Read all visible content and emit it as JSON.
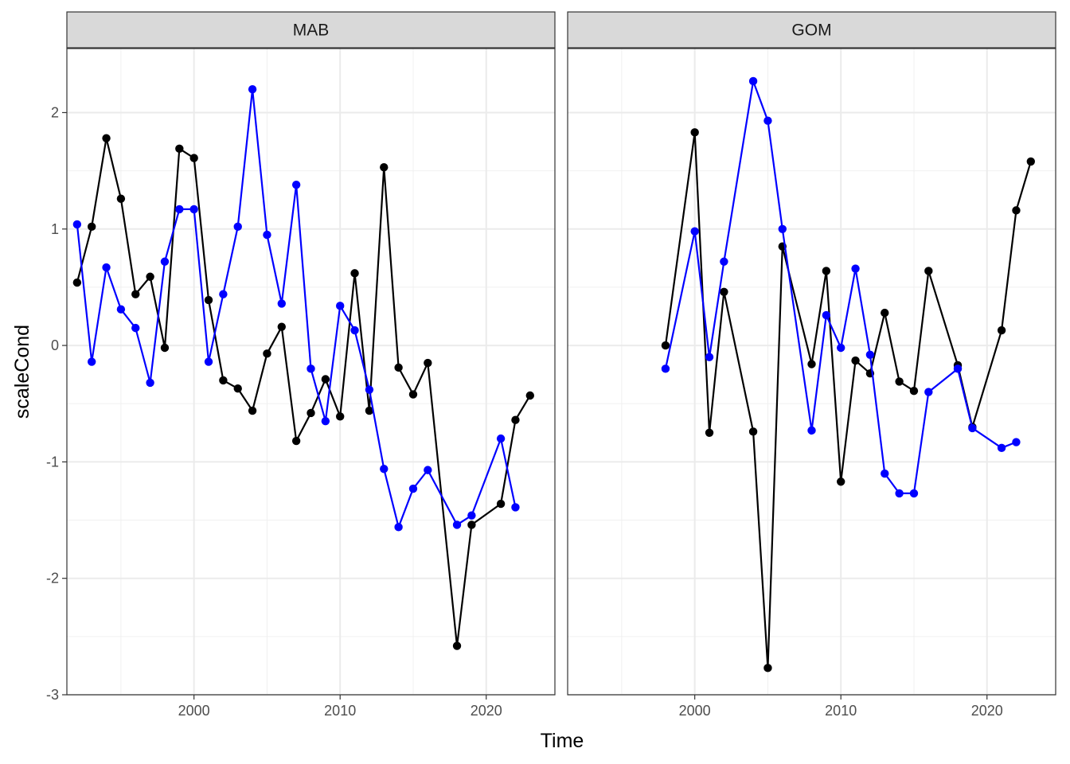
{
  "chart_data": {
    "type": "line",
    "xlabel": "Time",
    "ylabel": "scaleCond",
    "xlim": [
      1991.3,
      2024.7
    ],
    "ylim": [
      -3.0,
      2.55
    ],
    "x_major_ticks": [
      2000,
      2010,
      2020
    ],
    "x_minor_ticks": [
      1995,
      2005,
      2015
    ],
    "y_major_ticks": [
      -3,
      -2,
      -1,
      0,
      1,
      2
    ],
    "y_minor_ticks": [
      -2.5,
      -1.5,
      -0.5,
      0.5,
      1.5
    ],
    "grid": true,
    "colors": {
      "black": "#000000",
      "blue": "#0000ff"
    },
    "panels": [
      {
        "strip": "MAB",
        "series": [
          {
            "color": "#000000",
            "points": [
              [
                1992,
                0.54
              ],
              [
                1993,
                1.02
              ],
              [
                1994,
                1.78
              ],
              [
                1995,
                1.26
              ],
              [
                1996,
                0.44
              ],
              [
                1997,
                0.59
              ],
              [
                1998,
                -0.02
              ],
              [
                1999,
                1.69
              ],
              [
                2000,
                1.61
              ],
              [
                2001,
                0.39
              ],
              [
                2002,
                -0.3
              ],
              [
                2003,
                -0.37
              ],
              [
                2004,
                -0.56
              ],
              [
                2005,
                -0.07
              ],
              [
                2006,
                0.16
              ],
              [
                2007,
                -0.82
              ],
              [
                2008,
                -0.58
              ],
              [
                2009,
                -0.29
              ],
              [
                2010,
                -0.61
              ],
              [
                2011,
                0.62
              ],
              [
                2012,
                -0.56
              ],
              [
                2013,
                1.53
              ],
              [
                2014,
                -0.19
              ],
              [
                2015,
                -0.42
              ],
              [
                2016,
                -0.15
              ],
              [
                2018,
                -2.58
              ],
              [
                2019,
                -1.54
              ],
              [
                2021,
                -1.36
              ],
              [
                2022,
                -0.64
              ],
              [
                2023,
                -0.43
              ]
            ]
          },
          {
            "color": "#0000ff",
            "points": [
              [
                1992,
                1.04
              ],
              [
                1993,
                -0.14
              ],
              [
                1994,
                0.67
              ],
              [
                1995,
                0.31
              ],
              [
                1996,
                0.15
              ],
              [
                1997,
                -0.32
              ],
              [
                1998,
                0.72
              ],
              [
                1999,
                1.17
              ],
              [
                2000,
                1.17
              ],
              [
                2001,
                -0.14
              ],
              [
                2002,
                0.44
              ],
              [
                2003,
                1.02
              ],
              [
                2004,
                2.2
              ],
              [
                2005,
                0.95
              ],
              [
                2006,
                0.36
              ],
              [
                2007,
                1.38
              ],
              [
                2008,
                -0.2
              ],
              [
                2009,
                -0.65
              ],
              [
                2010,
                0.34
              ],
              [
                2011,
                0.13
              ],
              [
                2012,
                -0.38
              ],
              [
                2013,
                -1.06
              ],
              [
                2014,
                -1.56
              ],
              [
                2015,
                -1.23
              ],
              [
                2016,
                -1.07
              ],
              [
                2018,
                -1.54
              ],
              [
                2019,
                -1.46
              ],
              [
                2021,
                -0.8
              ],
              [
                2022,
                -1.39
              ]
            ]
          }
        ]
      },
      {
        "strip": "GOM",
        "series": [
          {
            "color": "#000000",
            "points": [
              [
                1998,
                0.0
              ],
              [
                2000,
                1.83
              ],
              [
                2001,
                -0.75
              ],
              [
                2002,
                0.46
              ],
              [
                2004,
                -0.74
              ],
              [
                2005,
                -2.77
              ],
              [
                2006,
                0.85
              ],
              [
                2008,
                -0.16
              ],
              [
                2009,
                0.64
              ],
              [
                2010,
                -1.17
              ],
              [
                2011,
                -0.13
              ],
              [
                2012,
                -0.24
              ],
              [
                2013,
                0.28
              ],
              [
                2014,
                -0.31
              ],
              [
                2015,
                -0.39
              ],
              [
                2016,
                0.64
              ],
              [
                2018,
                -0.17
              ],
              [
                2019,
                -0.7
              ],
              [
                2021,
                0.13
              ],
              [
                2022,
                1.16
              ],
              [
                2023,
                1.58
              ]
            ]
          },
          {
            "color": "#0000ff",
            "points": [
              [
                1998,
                -0.2
              ],
              [
                2000,
                0.98
              ],
              [
                2001,
                -0.1
              ],
              [
                2002,
                0.72
              ],
              [
                2004,
                2.27
              ],
              [
                2005,
                1.93
              ],
              [
                2006,
                1.0
              ],
              [
                2008,
                -0.73
              ],
              [
                2009,
                0.26
              ],
              [
                2010,
                -0.02
              ],
              [
                2011,
                0.66
              ],
              [
                2012,
                -0.08
              ],
              [
                2013,
                -1.1
              ],
              [
                2014,
                -1.27
              ],
              [
                2015,
                -1.27
              ],
              [
                2016,
                -0.4
              ],
              [
                2018,
                -0.2
              ],
              [
                2019,
                -0.71
              ],
              [
                2021,
                -0.88
              ],
              [
                2022,
                -0.83
              ]
            ]
          }
        ]
      }
    ]
  }
}
